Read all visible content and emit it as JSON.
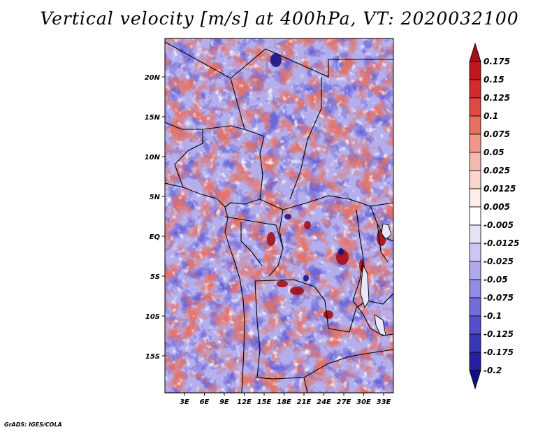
{
  "title": "Vertical velocity [m/s] at 400hPa, VT: 2020032100",
  "credit": "GrADS: IGES/COLA",
  "map": {
    "lat_labels": [
      "20N",
      "15N",
      "10N",
      "5N",
      "EQ",
      "5S",
      "10S",
      "15S"
    ],
    "lon_labels": [
      "3E",
      "6E",
      "9E",
      "12E",
      "15E",
      "18E",
      "21E",
      "24E",
      "27E",
      "30E",
      "33E"
    ]
  },
  "colorbar": {
    "levels": [
      "0.175",
      "0.15",
      "0.125",
      "0.1",
      "0.075",
      "0.05",
      "0.025",
      "0.0125",
      "0.005",
      "-0.005",
      "-0.0125",
      "-0.025",
      "-0.05",
      "-0.075",
      "-0.1",
      "-0.125",
      "-0.175",
      "-0.2"
    ],
    "colors": [
      "#a50f15",
      "#c0181e",
      "#d42a2a",
      "#e04a42",
      "#e8705f",
      "#f0968a",
      "#f5b8ae",
      "#fad6cf",
      "#fdeeea",
      "#ffffff",
      "#e6e3f8",
      "#cbc6f2",
      "#afa9ec",
      "#918be4",
      "#736dda",
      "#5450cc",
      "#3a36b8",
      "#2420a0",
      "#120e86"
    ]
  }
}
